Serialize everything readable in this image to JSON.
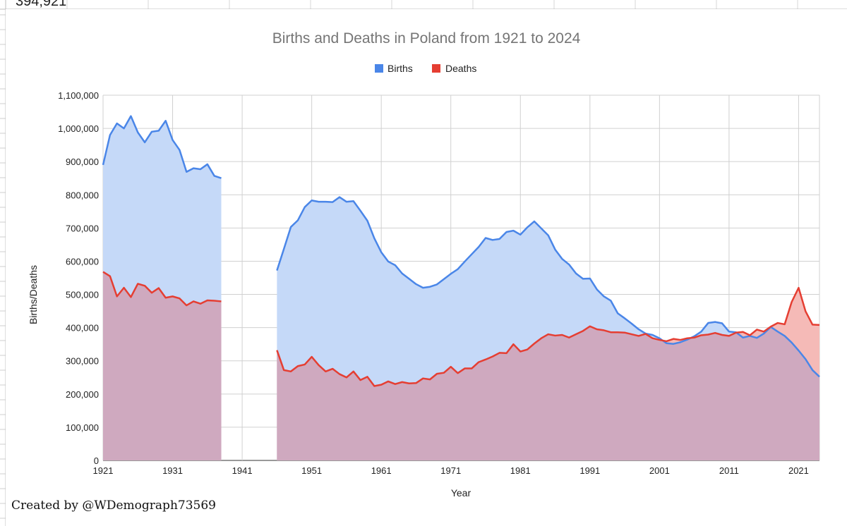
{
  "sheet_fragment": "394,921",
  "credit": "Created by @WDemograph73569",
  "colors": {
    "births": "#4a86e8",
    "deaths": "#e53e32",
    "births_fill": "#c5d9f8",
    "deaths_fill": "#f5bab7",
    "overlap_fill": "#cfa9bf",
    "grid": "#d0d0d0",
    "title": "#757575"
  },
  "chart_data": {
    "type": "area",
    "title": "Births and Deaths in Poland from 1921 to 2024",
    "xlabel": "Year",
    "ylabel": "Births/Deaths",
    "xlim": [
      1921,
      2024
    ],
    "ylim": [
      0,
      1100000
    ],
    "grid": true,
    "legend": "top",
    "xticks": [
      "1921",
      "1931",
      "1941",
      "1951",
      "1961",
      "1971",
      "1981",
      "1991",
      "2001",
      "2011",
      "2021"
    ],
    "yticks": [
      "0",
      "100,000",
      "200,000",
      "300,000",
      "400,000",
      "500,000",
      "600,000",
      "700,000",
      "800,000",
      "900,000",
      "1,000,000",
      "1,100,000"
    ],
    "series": [
      {
        "name": "Births",
        "x": [
          1921,
          1922,
          1923,
          1924,
          1925,
          1926,
          1927,
          1928,
          1929,
          1930,
          1931,
          1932,
          1933,
          1934,
          1935,
          1936,
          1937,
          1938,
          1946,
          1947,
          1948,
          1949,
          1950,
          1951,
          1952,
          1953,
          1954,
          1955,
          1956,
          1957,
          1958,
          1959,
          1960,
          1961,
          1962,
          1963,
          1964,
          1965,
          1966,
          1967,
          1968,
          1969,
          1970,
          1971,
          1972,
          1973,
          1974,
          1975,
          1976,
          1977,
          1978,
          1979,
          1980,
          1981,
          1982,
          1983,
          1984,
          1985,
          1986,
          1987,
          1988,
          1989,
          1990,
          1991,
          1992,
          1993,
          1994,
          1995,
          1996,
          1997,
          1998,
          1999,
          2000,
          2001,
          2002,
          2003,
          2004,
          2005,
          2006,
          2007,
          2008,
          2009,
          2010,
          2011,
          2012,
          2013,
          2014,
          2015,
          2016,
          2017,
          2018,
          2019,
          2020,
          2021,
          2022,
          2023,
          2024
        ],
        "values": [
          890000,
          980000,
          1015000,
          1000000,
          1037000,
          988000,
          958000,
          990000,
          993000,
          1023000,
          965000,
          935000,
          869000,
          880000,
          877000,
          892000,
          857000,
          850000,
          572000,
          637000,
          703000,
          723000,
          763000,
          783000,
          779000,
          779000,
          778000,
          793000,
          779000,
          781000,
          752000,
          722000,
          669000,
          627000,
          599000,
          588000,
          563000,
          547000,
          531000,
          520000,
          523000,
          530000,
          546000,
          562000,
          576000,
          599000,
          621000,
          643000,
          670000,
          664000,
          667000,
          688000,
          692000,
          680000,
          702000,
          720000,
          699000,
          678000,
          635000,
          607000,
          590000,
          563000,
          547000,
          548000,
          515000,
          494000,
          481000,
          443000,
          428000,
          412000,
          395000,
          382000,
          378000,
          368000,
          353000,
          351000,
          356000,
          364000,
          374000,
          388000,
          414000,
          417000,
          413000,
          388000,
          386000,
          370000,
          375000,
          369000,
          382000,
          402000,
          388000,
          375000,
          355000,
          331000,
          305000,
          272000,
          252000
        ]
      },
      {
        "name": "Deaths",
        "x": [
          1921,
          1922,
          1923,
          1924,
          1925,
          1926,
          1927,
          1928,
          1929,
          1930,
          1931,
          1932,
          1933,
          1934,
          1935,
          1936,
          1937,
          1938,
          1946,
          1947,
          1948,
          1949,
          1950,
          1951,
          1952,
          1953,
          1954,
          1955,
          1956,
          1957,
          1958,
          1959,
          1960,
          1961,
          1962,
          1963,
          1964,
          1965,
          1966,
          1967,
          1968,
          1969,
          1970,
          1971,
          1972,
          1973,
          1974,
          1975,
          1976,
          1977,
          1978,
          1979,
          1980,
          1981,
          1982,
          1983,
          1984,
          1985,
          1986,
          1987,
          1988,
          1989,
          1990,
          1991,
          1992,
          1993,
          1994,
          1995,
          1996,
          1997,
          1998,
          1999,
          2000,
          2001,
          2002,
          2003,
          2004,
          2005,
          2006,
          2007,
          2008,
          2009,
          2010,
          2011,
          2012,
          2013,
          2014,
          2015,
          2016,
          2017,
          2018,
          2019,
          2020,
          2021,
          2022,
          2023,
          2024
        ],
        "values": [
          568000,
          555000,
          494000,
          520000,
          492000,
          532000,
          526000,
          505000,
          519000,
          490000,
          494000,
          488000,
          467000,
          479000,
          472000,
          482000,
          481000,
          479000,
          332000,
          272000,
          268000,
          284000,
          289000,
          312000,
          287000,
          268000,
          276000,
          260000,
          250000,
          268000,
          242000,
          252000,
          224000,
          228000,
          238000,
          230000,
          236000,
          232000,
          233000,
          247000,
          244000,
          261000,
          264000,
          282000,
          263000,
          277000,
          277000,
          296000,
          304000,
          313000,
          324000,
          323000,
          350000,
          328000,
          334000,
          352000,
          368000,
          380000,
          376000,
          378000,
          370000,
          380000,
          390000,
          404000,
          395000,
          392000,
          386000,
          386000,
          385000,
          380000,
          375000,
          381000,
          368000,
          363000,
          359000,
          366000,
          363000,
          368000,
          370000,
          377000,
          379000,
          384000,
          378000,
          375000,
          385000,
          387000,
          377000,
          394000,
          388000,
          403000,
          414000,
          410000,
          477000,
          520000,
          449000,
          409000,
          408000
        ]
      }
    ]
  }
}
